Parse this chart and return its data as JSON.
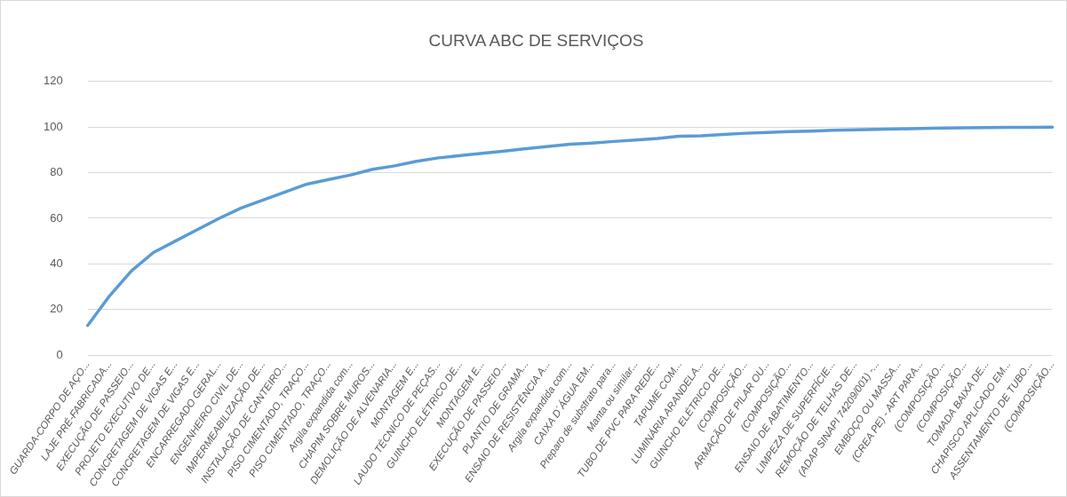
{
  "chart_data": {
    "type": "line",
    "title": "CURVA ABC DE SERVIÇOS",
    "categories": [
      "GUARDA-CORPO DE AÇO...",
      "LAJE PRÉ-FABRICADA...",
      "EXECUÇÃO DE PASSEIO...",
      "PROJETO EXECUTIVO DE...",
      "CONCRETAGEM DE VIGAS E...",
      "CONCRETAGEM DE VIGAS E...",
      "ENCARREGADO GERAL...",
      "ENGENHEIRO CIVIL DE...",
      "IMPERMEABILIZAÇÃO DE...",
      "INSTALAÇÃO DE CANTEIRO...",
      "PISO CIMENTADO, TRAÇO...",
      "PISO CIMENTADO, TRAÇO...",
      "Argila expandida com...",
      "CHAPIM SOBRE MUROS...",
      "DEMOLIÇÃO DE ALVENARIA...",
      "MONTAGEM E...",
      "LAUDO TÉCNICO DE PEÇAS...",
      "GUINCHO ELÉTRICO DE...",
      "MONTAGEM E...",
      "EXECUÇÃO DE PASSEIO...",
      "PLANTIO DE GRAMA...",
      "ENSAIO DE RESISTÊNCIA A...",
      "Argila expandida com...",
      "CAIXA D´ÁGUA EM...",
      "Preparo de substrato para...",
      "Manta ou similar...",
      "TUBO DE PVC PARA REDE...",
      "TAPUME COM...",
      "LUMINÁRIA ARANDELA...",
      "GUINCHO ELÉTRICO DE...",
      "(COMPOSIÇÃO...",
      "ARMAÇÃO DE PILAR OU...",
      "(COMPOSIÇÃO...",
      "ENSAIO DE ABATIMENTO...",
      "LIMPEZA DE SUPERFÍCIE...",
      "REMOÇÃO DE TELHAS DE...",
      "(ADAP SINAPI 74209/001) -...",
      "EMBOÇO OU MASSA...",
      "(CREA PE) - ART PARA...",
      "(COMPOSIÇÃO...",
      "(COMPOSIÇÃO...",
      "TOMADA BAIXA DE...",
      "CHAPISCO APLICADO EM...",
      "ASSENTAMENTO DE TUBO...",
      "(COMPOSIÇÃO..."
    ],
    "series": [
      {
        "color": "#5b9bd5",
        "values": [
          13,
          26,
          37,
          45,
          50,
          55,
          60,
          64.5,
          68,
          71.5,
          75,
          77,
          79,
          81.5,
          83,
          85,
          86.5,
          87.5,
          88.5,
          89.5,
          90.5,
          91.5,
          92.5,
          93,
          93.7,
          94.3,
          95,
          96,
          96.2,
          96.8,
          97.3,
          97.6,
          98,
          98.2,
          98.6,
          98.8,
          99,
          99.2,
          99.4,
          99.6,
          99.7,
          99.8,
          99.9,
          99.9,
          100
        ]
      }
    ],
    "ylim": [
      0,
      120
    ],
    "yticks": [
      0,
      20,
      40,
      60,
      80,
      100,
      120
    ],
    "grid": "y",
    "legend": false,
    "marker": "none",
    "line_style": "solid"
  }
}
